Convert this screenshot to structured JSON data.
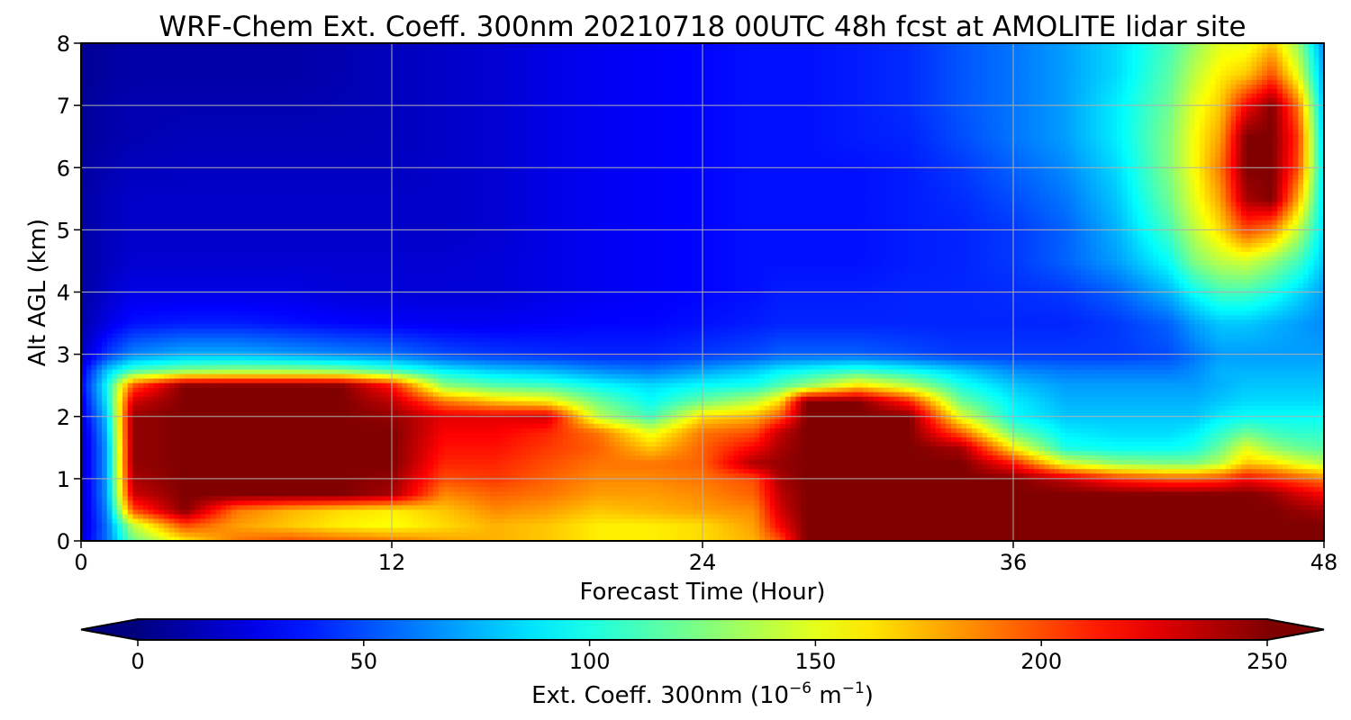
{
  "chart_data": {
    "type": "heatmap",
    "title": "WRF-Chem Ext. Coeff. 300nm  20210718 00UTC 48h fcst at AMOLITE lidar site",
    "xlabel": "Forecast Time (Hour)",
    "ylabel": "Alt AGL (km)",
    "xlim": [
      0,
      48
    ],
    "ylim": [
      0,
      8
    ],
    "x_ticks": [
      0,
      12,
      24,
      36,
      48
    ],
    "y_ticks": [
      0,
      1,
      2,
      3,
      4,
      5,
      6,
      7,
      8
    ],
    "grid": true,
    "x": [
      0,
      1,
      2,
      4,
      6,
      8,
      10,
      12,
      14,
      16,
      18,
      20,
      22,
      24,
      26,
      27,
      28,
      30,
      32,
      34,
      36,
      38,
      40,
      42,
      43,
      44,
      45,
      46,
      47,
      48
    ],
    "y": [
      0,
      0.25,
      0.5,
      0.75,
      1.0,
      1.25,
      1.5,
      1.75,
      2.0,
      2.25,
      2.5,
      2.75,
      3.0,
      3.5,
      4.0,
      4.5,
      5.0,
      5.5,
      6.0,
      6.5,
      7.0,
      7.5,
      8.0
    ],
    "values": [
      [
        20,
        60,
        120,
        160,
        190,
        200,
        195,
        190,
        180,
        175,
        170,
        160,
        160,
        165,
        175,
        200,
        250,
        250,
        250,
        250,
        250,
        250,
        250,
        250,
        250,
        250,
        250,
        250,
        250,
        250
      ],
      [
        15,
        60,
        140,
        200,
        180,
        170,
        160,
        155,
        165,
        175,
        170,
        160,
        160,
        165,
        180,
        220,
        250,
        250,
        250,
        250,
        250,
        250,
        250,
        250,
        250,
        250,
        250,
        250,
        250,
        250
      ],
      [
        15,
        65,
        200,
        250,
        190,
        175,
        165,
        160,
        170,
        185,
        180,
        170,
        175,
        180,
        185,
        230,
        250,
        250,
        250,
        250,
        250,
        250,
        250,
        250,
        250,
        250,
        250,
        250,
        245,
        240
      ],
      [
        15,
        70,
        230,
        250,
        250,
        250,
        250,
        240,
        185,
        195,
        190,
        180,
        180,
        185,
        195,
        235,
        250,
        250,
        250,
        250,
        250,
        250,
        250,
        250,
        250,
        250,
        250,
        245,
        230,
        220
      ],
      [
        15,
        70,
        240,
        250,
        250,
        250,
        250,
        245,
        200,
        205,
        195,
        185,
        185,
        190,
        200,
        240,
        250,
        250,
        250,
        250,
        250,
        235,
        210,
        200,
        200,
        205,
        220,
        210,
        200,
        190
      ],
      [
        15,
        70,
        245,
        250,
        250,
        250,
        250,
        250,
        210,
        210,
        200,
        190,
        190,
        195,
        240,
        245,
        250,
        250,
        250,
        250,
        215,
        150,
        130,
        125,
        125,
        140,
        170,
        165,
        150,
        140
      ],
      [
        15,
        70,
        245,
        250,
        250,
        250,
        250,
        250,
        215,
        215,
        205,
        195,
        170,
        195,
        220,
        240,
        250,
        250,
        250,
        240,
        160,
        100,
        95,
        95,
        100,
        120,
        150,
        130,
        120,
        115
      ],
      [
        15,
        75,
        245,
        250,
        250,
        250,
        250,
        250,
        220,
        220,
        210,
        190,
        150,
        190,
        200,
        235,
        250,
        250,
        250,
        195,
        120,
        90,
        85,
        85,
        90,
        105,
        120,
        110,
        105,
        105
      ],
      [
        20,
        80,
        245,
        250,
        250,
        250,
        250,
        245,
        225,
        225,
        230,
        140,
        110,
        165,
        175,
        200,
        250,
        250,
        250,
        150,
        95,
        80,
        80,
        80,
        80,
        90,
        95,
        95,
        95,
        95
      ],
      [
        25,
        90,
        230,
        250,
        250,
        250,
        250,
        235,
        190,
        170,
        160,
        120,
        95,
        120,
        140,
        165,
        250,
        250,
        210,
        120,
        90,
        75,
        75,
        75,
        75,
        80,
        85,
        85,
        85,
        85
      ],
      [
        30,
        95,
        200,
        250,
        250,
        250,
        250,
        215,
        130,
        115,
        110,
        95,
        85,
        95,
        100,
        115,
        130,
        165,
        140,
        100,
        80,
        70,
        70,
        70,
        70,
        75,
        80,
        80,
        80,
        80
      ],
      [
        25,
        80,
        110,
        125,
        130,
        130,
        125,
        110,
        90,
        80,
        75,
        65,
        60,
        70,
        80,
        90,
        95,
        105,
        95,
        80,
        65,
        60,
        60,
        60,
        65,
        75,
        75,
        75,
        75,
        75
      ],
      [
        15,
        45,
        65,
        75,
        75,
        70,
        65,
        60,
        50,
        45,
        42,
        40,
        40,
        45,
        50,
        55,
        55,
        55,
        50,
        45,
        45,
        45,
        45,
        50,
        60,
        70,
        70,
        70,
        70,
        70
      ],
      [
        10,
        25,
        35,
        38,
        38,
        35,
        32,
        30,
        28,
        28,
        30,
        32,
        32,
        35,
        38,
        40,
        40,
        40,
        40,
        40,
        40,
        40,
        45,
        55,
        70,
        80,
        80,
        75,
        70,
        65
      ],
      [
        8,
        18,
        25,
        25,
        25,
        25,
        22,
        22,
        22,
        22,
        25,
        28,
        30,
        32,
        35,
        38,
        38,
        38,
        40,
        40,
        42,
        45,
        55,
        75,
        95,
        110,
        110,
        100,
        85,
        70
      ],
      [
        8,
        15,
        20,
        20,
        20,
        20,
        20,
        20,
        20,
        22,
        25,
        28,
        30,
        32,
        35,
        35,
        35,
        35,
        38,
        40,
        45,
        55,
        70,
        95,
        125,
        140,
        145,
        130,
        110,
        80
      ],
      [
        8,
        15,
        18,
        18,
        18,
        18,
        18,
        18,
        18,
        20,
        25,
        28,
        30,
        32,
        35,
        35,
        35,
        35,
        38,
        40,
        45,
        55,
        75,
        110,
        140,
        165,
        200,
        185,
        140,
        85
      ],
      [
        8,
        15,
        18,
        18,
        18,
        18,
        18,
        18,
        18,
        20,
        25,
        28,
        30,
        32,
        35,
        35,
        35,
        35,
        38,
        42,
        50,
        60,
        80,
        120,
        150,
        180,
        240,
        250,
        175,
        85
      ],
      [
        8,
        12,
        15,
        16,
        16,
        16,
        16,
        16,
        18,
        20,
        25,
        28,
        30,
        32,
        35,
        35,
        35,
        35,
        38,
        45,
        55,
        65,
        85,
        125,
        155,
        190,
        250,
        250,
        200,
        85
      ],
      [
        6,
        10,
        12,
        14,
        14,
        14,
        14,
        15,
        18,
        20,
        25,
        28,
        30,
        32,
        35,
        35,
        35,
        38,
        40,
        50,
        60,
        70,
        90,
        125,
        155,
        180,
        250,
        250,
        205,
        80
      ],
      [
        6,
        10,
        12,
        12,
        12,
        12,
        13,
        15,
        18,
        20,
        25,
        28,
        30,
        32,
        35,
        35,
        35,
        38,
        42,
        52,
        60,
        70,
        90,
        120,
        150,
        170,
        220,
        250,
        190,
        75
      ],
      [
        5,
        8,
        10,
        10,
        10,
        10,
        12,
        15,
        18,
        20,
        25,
        28,
        30,
        32,
        35,
        35,
        35,
        38,
        42,
        52,
        60,
        70,
        85,
        115,
        140,
        160,
        170,
        200,
        150,
        70
      ],
      [
        5,
        8,
        10,
        10,
        10,
        10,
        12,
        15,
        18,
        20,
        25,
        28,
        30,
        32,
        35,
        35,
        35,
        38,
        42,
        52,
        60,
        70,
        85,
        110,
        130,
        150,
        150,
        170,
        130,
        65
      ]
    ],
    "colorbar": {
      "label": "Ext. Coeff. 300nm  (10",
      "label_exp": "−6",
      "label_mid": " m",
      "label_exp2": "−1",
      "label_end": ")",
      "vmin": 0,
      "vmax": 250,
      "ticks": [
        0,
        50,
        100,
        150,
        200,
        250
      ],
      "colormap": "jet",
      "extend": "both",
      "under_color": "#00007f",
      "over_color": "#7f0000"
    }
  }
}
